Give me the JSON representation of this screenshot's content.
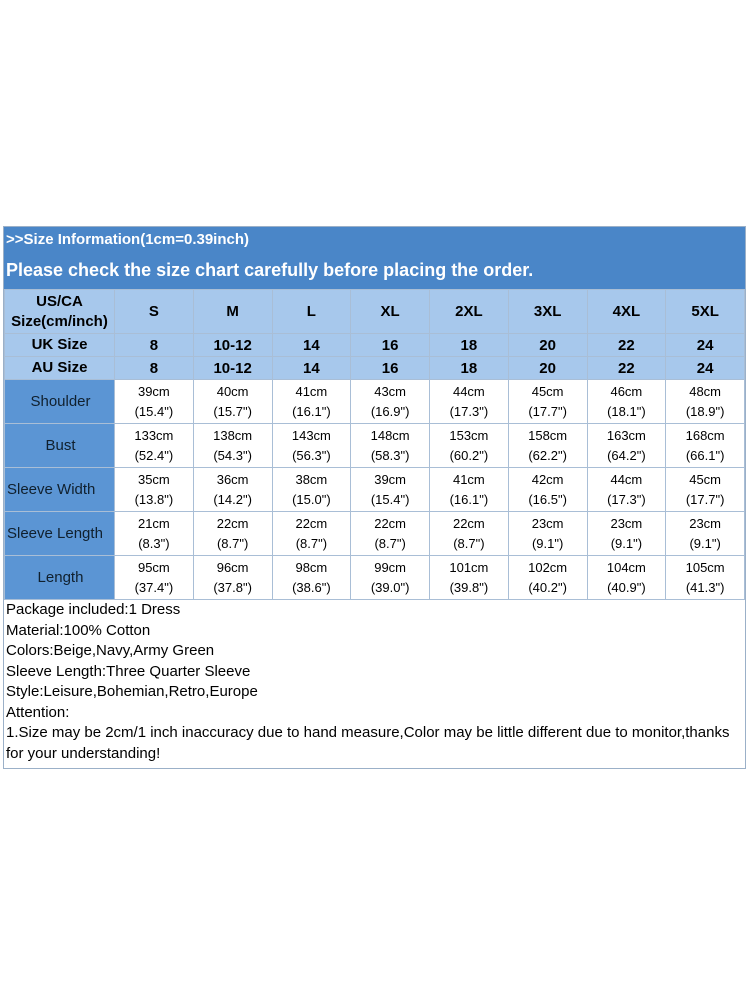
{
  "header": {
    "line1": ">>Size Information(1cm=0.39inch)",
    "line2": "Please check the size chart carefully before placing the order."
  },
  "table": {
    "size_row": {
      "label": [
        "US/CA",
        "Size(cm/inch)"
      ],
      "values": [
        "S",
        "M",
        "L",
        "XL",
        "2XL",
        "3XL",
        "4XL",
        "5XL"
      ]
    },
    "uk_row": {
      "label": "UK Size",
      "values": [
        "8",
        "10-12",
        "14",
        "16",
        "18",
        "20",
        "22",
        "24"
      ]
    },
    "au_row": {
      "label": "AU Size",
      "values": [
        "8",
        "10-12",
        "14",
        "16",
        "18",
        "20",
        "22",
        "24"
      ]
    },
    "measurements": [
      {
        "label": "Shoulder",
        "cm": [
          "39cm",
          "40cm",
          "41cm",
          "43cm",
          "44cm",
          "45cm",
          "46cm",
          "48cm"
        ],
        "inch": [
          "(15.4\")",
          "(15.7\")",
          "(16.1\")",
          "(16.9\")",
          "(17.3\")",
          "(17.7\")",
          "(18.1\")",
          "(18.9\")"
        ]
      },
      {
        "label": "Bust",
        "cm": [
          "133cm",
          "138cm",
          "143cm",
          "148cm",
          "153cm",
          "158cm",
          "163cm",
          "168cm"
        ],
        "inch": [
          "(52.4\")",
          "(54.3\")",
          "(56.3\")",
          "(58.3\")",
          "(60.2\")",
          "(62.2\")",
          "(64.2\")",
          "(66.1\")"
        ]
      },
      {
        "label": "Sleeve Width",
        "cm": [
          "35cm",
          "36cm",
          "38cm",
          "39cm",
          "41cm",
          "42cm",
          "44cm",
          "45cm"
        ],
        "inch": [
          "(13.8\")",
          "(14.2\")",
          "(15.0\")",
          "(15.4\")",
          "(16.1\")",
          "(16.5\")",
          "(17.3\")",
          "(17.7\")"
        ]
      },
      {
        "label": "Sleeve Length",
        "cm": [
          "21cm",
          "22cm",
          "22cm",
          "22cm",
          "22cm",
          "23cm",
          "23cm",
          "23cm"
        ],
        "inch": [
          "(8.3\")",
          "(8.7\")",
          "(8.7\")",
          "(8.7\")",
          "(8.7\")",
          "(9.1\")",
          "(9.1\")",
          "(9.1\")"
        ]
      },
      {
        "label": "Length",
        "cm": [
          "95cm",
          "96cm",
          "98cm",
          "99cm",
          "101cm",
          "102cm",
          "104cm",
          "105cm"
        ],
        "inch": [
          "(37.4\")",
          "(37.8\")",
          "(38.6\")",
          "(39.0\")",
          "(39.8\")",
          "(40.2\")",
          "(40.9\")",
          "(41.3\")"
        ]
      }
    ]
  },
  "info": [
    "Package included:1 Dress",
    "Material:100% Cotton",
    "Colors:Beige,Navy,Army Green",
    "Sleeve Length:Three Quarter Sleeve",
    "Style:Leisure,Bohemian,Retro,Europe",
    "Attention:",
    "1.Size may be 2cm/1 inch inaccuracy due to hand measure,Color may be little different due to monitor,thanks for your understanding!"
  ],
  "colors": {
    "header_bg": "#4a86c8",
    "size_header_bg": "#a7c8ec",
    "row_label_bg": "#5b95d4"
  }
}
